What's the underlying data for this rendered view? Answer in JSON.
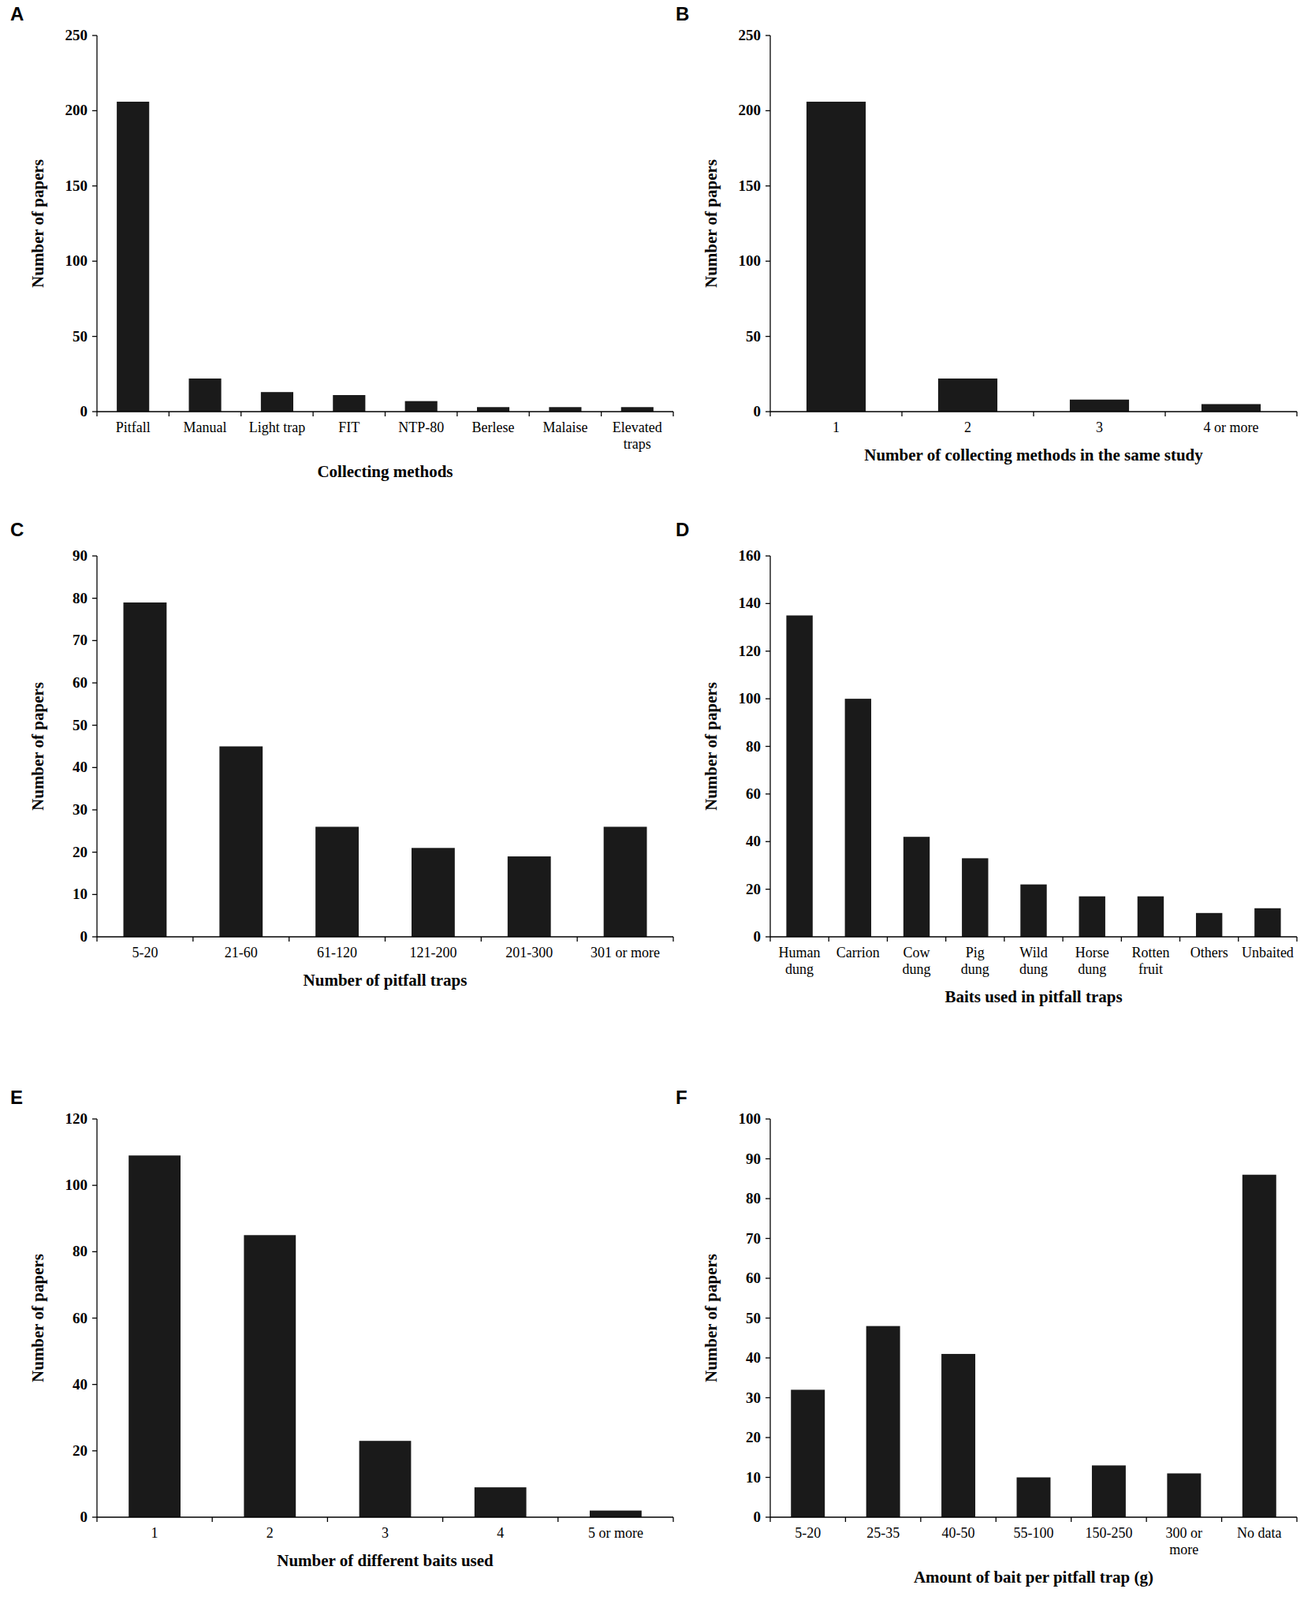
{
  "chart_data": [
    {
      "type": "bar",
      "title": "A",
      "x_label": "Collecting methods",
      "y_label": "Number of papers",
      "categories": [
        "Pitfall",
        "Manual",
        "Light trap",
        "FIT",
        "NTP-80",
        "Berlese",
        "Malaise",
        "Elevated traps"
      ],
      "values": [
        206,
        22,
        13,
        11,
        7,
        3,
        3,
        3
      ],
      "color": "#1a1a1a",
      "ylim": [
        0,
        250
      ],
      "yticks": [
        0,
        50,
        100,
        150,
        200,
        250
      ]
    },
    {
      "type": "bar",
      "title": "B",
      "x_label": "Number of collecting methods in the same study",
      "y_label": "Number of papers",
      "categories": [
        "1",
        "2",
        "3",
        "4 or more"
      ],
      "values": [
        206,
        22,
        8,
        5
      ],
      "color": "#1a1a1a",
      "ylim": [
        0,
        250
      ],
      "yticks": [
        0,
        50,
        100,
        150,
        200,
        250
      ]
    },
    {
      "type": "bar",
      "title": "C",
      "x_label": "Number of pitfall traps",
      "y_label": "Number of papers",
      "categories": [
        "5-20",
        "21-60",
        "61-120",
        "121-200",
        "201-300",
        "301 or more"
      ],
      "values": [
        79,
        45,
        26,
        21,
        19,
        26
      ],
      "color": "#1a1a1a",
      "ylim": [
        0,
        90
      ],
      "yticks": [
        0,
        10,
        20,
        30,
        40,
        50,
        60,
        70,
        80,
        90
      ]
    },
    {
      "type": "bar",
      "title": "D",
      "x_label": "Baits used in pitfall traps",
      "y_label": "Number of papers",
      "categories": [
        "Human dung",
        "Carrion",
        "Cow dung",
        "Pig dung",
        "Wild dung",
        "Horse dung",
        "Rotten fruit",
        "Others",
        "Unbaited"
      ],
      "values": [
        135,
        100,
        42,
        33,
        22,
        17,
        17,
        10,
        12
      ],
      "color": "#1a1a1a",
      "ylim": [
        0,
        160
      ],
      "yticks": [
        0,
        20,
        40,
        60,
        80,
        100,
        120,
        140,
        160
      ]
    },
    {
      "type": "bar",
      "title": "E",
      "x_label": "Number of different baits used",
      "y_label": "Number of papers",
      "categories": [
        "1",
        "2",
        "3",
        "4",
        "5 or more"
      ],
      "values": [
        109,
        85,
        23,
        9,
        2
      ],
      "color": "#1a1a1a",
      "ylim": [
        0,
        120
      ],
      "yticks": [
        0,
        20,
        40,
        60,
        80,
        100,
        120
      ]
    },
    {
      "type": "bar",
      "title": "F",
      "x_label": "Amount of bait per pitfall trap (g)",
      "y_label": "Number of papers",
      "categories": [
        "5-20",
        "25-35",
        "40-50",
        "55-100",
        "150-250",
        "300 or more",
        "No data"
      ],
      "values": [
        32,
        48,
        41,
        10,
        13,
        11,
        86
      ],
      "color": "#1a1a1a",
      "ylim": [
        0,
        100
      ],
      "yticks": [
        0,
        10,
        20,
        30,
        40,
        50,
        60,
        70,
        80,
        90,
        100
      ]
    }
  ]
}
